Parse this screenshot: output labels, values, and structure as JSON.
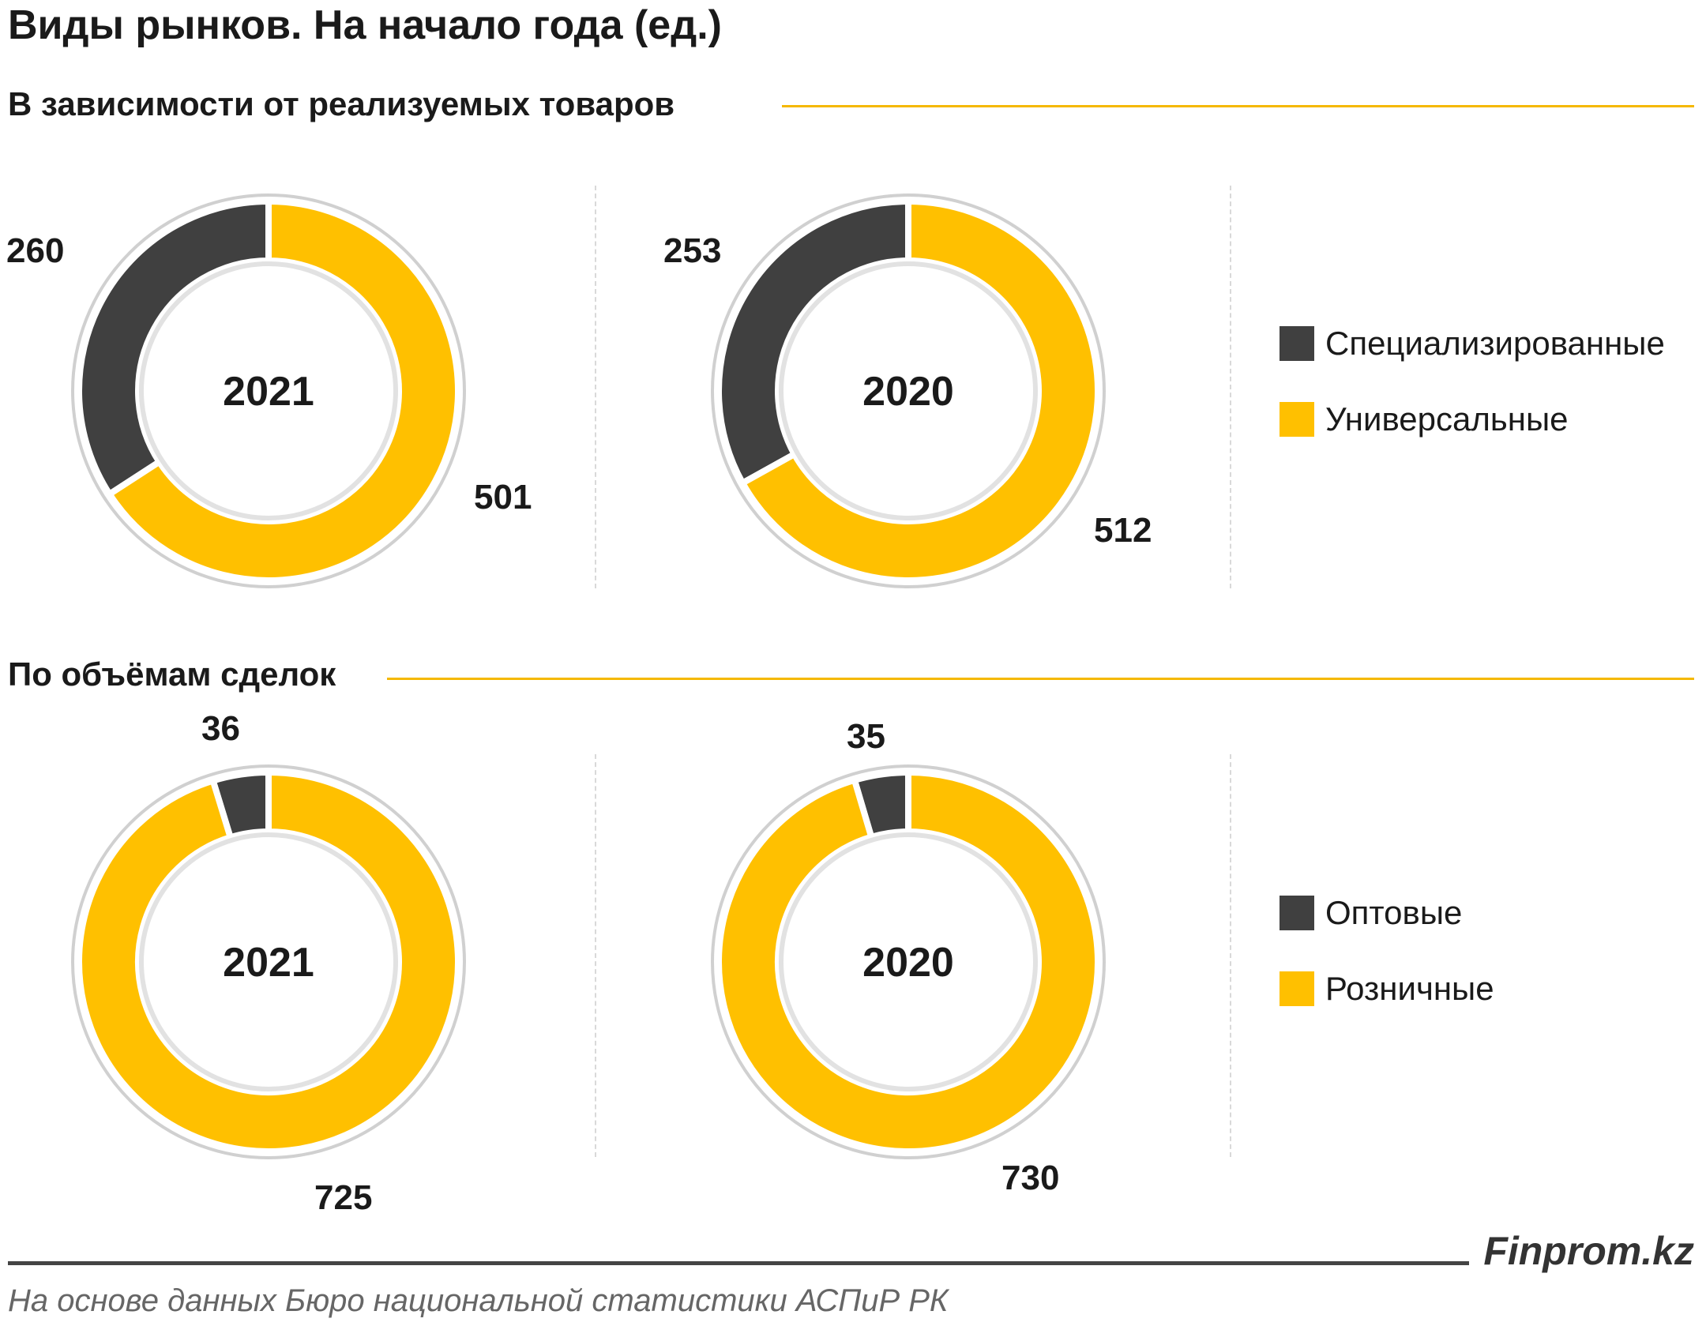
{
  "title": "Виды рынков. На начало года (ед.)",
  "sections": [
    {
      "heading": "В зависимости   от реализуемых  товаров",
      "legend": [
        {
          "label": "Специализированные",
          "color": "#404040"
        },
        {
          "label": "Универсальные",
          "color": "#FFC000"
        }
      ]
    },
    {
      "heading": "По объёмам  сделок",
      "legend": [
        {
          "label": "Оптовые",
          "color": "#404040"
        },
        {
          "label": "Розничные",
          "color": "#FFC000"
        }
      ]
    }
  ],
  "chart_data": [
    {
      "type": "pie",
      "subtype": "donut",
      "center_label": "2021",
      "categories": [
        "Специализированные",
        "Универсальные"
      ],
      "values": [
        260,
        501
      ],
      "colors": [
        "#404040",
        "#FFC000"
      ]
    },
    {
      "type": "pie",
      "subtype": "donut",
      "center_label": "2020",
      "categories": [
        "Специализированные",
        "Универсальные"
      ],
      "values": [
        253,
        512
      ],
      "colors": [
        "#404040",
        "#FFC000"
      ]
    },
    {
      "type": "pie",
      "subtype": "donut",
      "center_label": "2021",
      "categories": [
        "Оптовые",
        "Розничные"
      ],
      "values": [
        36,
        725
      ],
      "colors": [
        "#404040",
        "#FFC000"
      ]
    },
    {
      "type": "pie",
      "subtype": "donut",
      "center_label": "2020",
      "categories": [
        "Оптовые",
        "Розничные"
      ],
      "values": [
        35,
        730
      ],
      "colors": [
        "#404040",
        "#FFC000"
      ]
    }
  ],
  "brand": "Finprom.kz",
  "source": "На основе данных  Бюро национальной  статистики АСПиР РК"
}
